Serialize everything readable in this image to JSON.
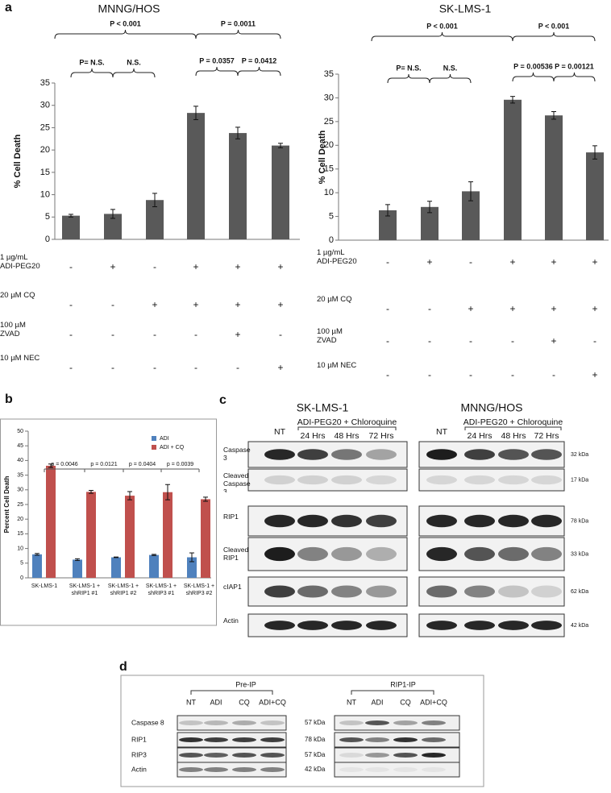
{
  "chart_data": [
    {
      "type": "bar",
      "panel_label": "a",
      "title": "MNNG/HOS",
      "y_label": "% Cell Death",
      "values": [
        5.3,
        5.7,
        8.8,
        28.3,
        23.8,
        21.0
      ],
      "errors": [
        0.3,
        1.0,
        1.5,
        1.5,
        1.3,
        0.5
      ],
      "color": "#595959",
      "ylim": [
        0,
        35
      ],
      "yticks": [
        0,
        5,
        10,
        15,
        20,
        25,
        30,
        35
      ],
      "annotations": [
        "P < 0.001",
        "P = 0.0011",
        "P= N.S.",
        "N.S.",
        "P = 0.0357",
        "P = 0.0412"
      ],
      "treatments": [
        {
          "label": "1 µg/mL ADI-PEG20",
          "values": [
            "-",
            "+",
            "-",
            "+",
            "+",
            "+"
          ]
        },
        {
          "label": "20 µM CQ",
          "values": [
            "-",
            "-",
            "+",
            "+",
            "+",
            "+"
          ]
        },
        {
          "label": "100 µM ZVAD",
          "values": [
            "-",
            "-",
            "-",
            "-",
            "+",
            "-"
          ]
        },
        {
          "label": "10 µM NEC",
          "values": [
            "-",
            "-",
            "-",
            "-",
            "-",
            "+"
          ]
        }
      ]
    },
    {
      "type": "bar",
      "title": "SK-LMS-1",
      "y_label": "% Cell Death",
      "values": [
        6.3,
        7.0,
        10.3,
        29.6,
        26.3,
        18.5
      ],
      "errors": [
        1.2,
        1.2,
        2.0,
        0.7,
        0.8,
        1.4
      ],
      "color": "#595959",
      "ylim": [
        0,
        35
      ],
      "yticks": [
        0,
        5,
        10,
        15,
        20,
        25,
        30,
        35
      ],
      "annotations": [
        "P < 0.001",
        "P < 0.001",
        "P= N.S.",
        "N.S.",
        "P = 0.00536",
        "P = 0.00121"
      ],
      "treatments": [
        {
          "label": "1 µg/mL ADI-PEG20",
          "values": [
            "-",
            "+",
            "-",
            "+",
            "+",
            "+"
          ]
        },
        {
          "label": "20 µM CQ",
          "values": [
            "-",
            "-",
            "+",
            "+",
            "+",
            "+"
          ]
        },
        {
          "label": "100 µM ZVAD",
          "values": [
            "-",
            "-",
            "-",
            "-",
            "+",
            "-"
          ]
        },
        {
          "label": "10 µM NEC",
          "values": [
            "-",
            "-",
            "-",
            "-",
            "-",
            "+"
          ]
        }
      ]
    },
    {
      "type": "grouped_bar",
      "panel_label": "b",
      "y_label": "Percent Cell Death",
      "categories": [
        "SK-LMS-1",
        "SK-LMS-1 + shRIP1 #1",
        "SK-LMS-1 + shRIP1 #2",
        "SK-LMS-1 + shRIP3 #1",
        "SK-LMS-1 + shRIP3 #2"
      ],
      "series": [
        {
          "name": "ADI",
          "color": "#4f81bd",
          "values": [
            8.0,
            6.2,
            7.0,
            7.8,
            7.0
          ],
          "errors": [
            0.3,
            0.3,
            0.1,
            0.2,
            1.5
          ]
        },
        {
          "name": "ADI + CQ",
          "color": "#c0504d",
          "values": [
            38.2,
            29.3,
            28.0,
            29.2,
            26.8
          ],
          "errors": [
            0.6,
            0.5,
            1.4,
            2.6,
            0.7
          ]
        }
      ],
      "ylim": [
        0,
        50
      ],
      "yticks": [
        0,
        5,
        10,
        15,
        20,
        25,
        30,
        35,
        40,
        45,
        50
      ],
      "legend": "upper right",
      "annotations": [
        "p = 0.0046",
        "p = 0.0121",
        "p = 0.0404",
        "p = 0.0039"
      ]
    }
  ],
  "blot_c": {
    "panel_label": "c",
    "panels": [
      {
        "title": "SK-LMS-1",
        "treatment": "ADI-PEG20 + Chloroquine",
        "lanes": [
          "NT",
          "24 Hrs",
          "48 Hrs",
          "72 Hrs"
        ]
      },
      {
        "title": "MNNG/HOS",
        "treatment": "ADI-PEG20 + Chloroquine",
        "lanes": [
          "NT",
          "24 Hrs",
          "48 Hrs",
          "72 Hrs"
        ]
      }
    ],
    "rows": [
      "Caspase 3",
      "Cleaved Caspase 3",
      "RIP1",
      "Cleaved RIP1",
      "cIAP1",
      "Actin"
    ],
    "sizes": [
      "32 kDa",
      "17 kDa",
      "78 kDa",
      "33 kDa",
      "62 kDa",
      "42 kDa"
    ]
  },
  "blot_d": {
    "panel_label": "d",
    "panels": [
      {
        "title": "Pre-IP",
        "lanes": [
          "NT",
          "ADI",
          "CQ",
          "ADI+CQ"
        ]
      },
      {
        "title": "RIP1-IP",
        "lanes": [
          "NT",
          "ADI",
          "CQ",
          "ADI+CQ"
        ]
      }
    ],
    "rows": [
      "Caspase 8",
      "RIP1",
      "RIP3",
      "Actin"
    ],
    "sizes": [
      "57 kDa",
      "78 kDa",
      "57 kDa",
      "42 kDa"
    ]
  }
}
